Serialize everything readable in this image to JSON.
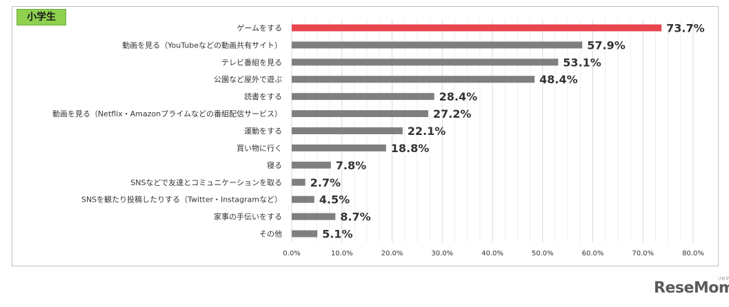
{
  "panel_label": "小学生",
  "watermark": "ReseMom",
  "watermark_sub": "リセマム",
  "colors": {
    "highlight": "#e8474f",
    "bar": "#7f7f7f",
    "grid": "#d9d9d9",
    "label_bg": "#8fd14f"
  },
  "chart_data": {
    "type": "bar",
    "orientation": "horizontal",
    "title": "",
    "xlabel": "",
    "ylabel": "",
    "categories": [
      "ゲームをする",
      "動画を見る（YouTubeなどの動画共有サイト）",
      "テレビ番組を見る",
      "公園など屋外で遊ぶ",
      "読書をする",
      "動画を見る（Netflix・Amazonプライムなどの番組配信サービス）",
      "運動をする",
      "買い物に行く",
      "寝る",
      "SNSなどで友達とコミュニケーションを取る",
      "SNSを観たり投稿したりする（Twitter・Instagramなど）",
      "家事の手伝いをする",
      "その他"
    ],
    "values": [
      73.7,
      57.9,
      53.1,
      48.4,
      28.4,
      27.2,
      22.1,
      18.8,
      7.8,
      2.7,
      4.5,
      8.7,
      5.1
    ],
    "value_labels": [
      "73.7%",
      "57.9%",
      "53.1%",
      "48.4%",
      "28.4%",
      "27.2%",
      "22.1%",
      "18.8%",
      "7.8%",
      "2.7%",
      "4.5%",
      "8.7%",
      "5.1%"
    ],
    "xlim": [
      0,
      80
    ],
    "xticks": [
      0,
      10,
      20,
      30,
      40,
      50,
      60,
      70,
      80
    ],
    "xtick_labels": [
      "0.0%",
      "10.0%",
      "20.0%",
      "30.0%",
      "40.0%",
      "50.0%",
      "60.0%",
      "70.0%",
      "80.0%"
    ],
    "grid": true,
    "highlight_index": 0
  }
}
